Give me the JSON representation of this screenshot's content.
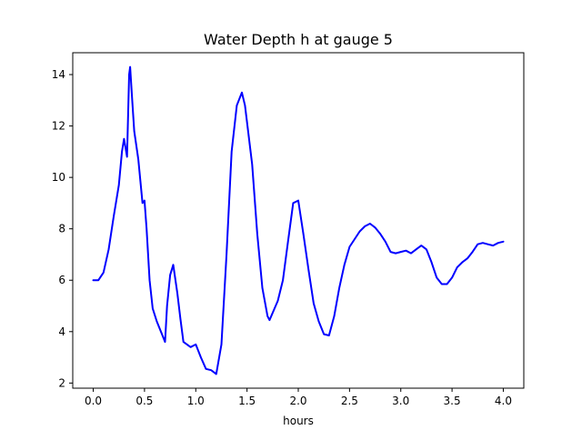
{
  "chart_data": {
    "type": "line",
    "title": "Water Depth h at gauge 5",
    "xlabel": "hours",
    "ylabel": "",
    "xlim": [
      -0.2,
      4.2
    ],
    "ylim": [
      1.8,
      14.85
    ],
    "xticks": [
      0.0,
      0.5,
      1.0,
      1.5,
      2.0,
      2.5,
      3.0,
      3.5,
      4.0
    ],
    "xtick_labels": [
      "0.0",
      "0.5",
      "1.0",
      "1.5",
      "2.0",
      "2.5",
      "3.0",
      "3.5",
      "4.0"
    ],
    "yticks": [
      2,
      4,
      6,
      8,
      10,
      12,
      14
    ],
    "ytick_labels": [
      "2",
      "4",
      "6",
      "8",
      "10",
      "12",
      "14"
    ],
    "grid": false,
    "legend": "none",
    "series": [
      {
        "color": "#0000ff",
        "points": [
          [
            0.0,
            6.0
          ],
          [
            0.05,
            6.0
          ],
          [
            0.1,
            6.3
          ],
          [
            0.15,
            7.2
          ],
          [
            0.2,
            8.5
          ],
          [
            0.25,
            9.7
          ],
          [
            0.28,
            11.0
          ],
          [
            0.3,
            11.5
          ],
          [
            0.33,
            10.8
          ],
          [
            0.35,
            14.0
          ],
          [
            0.36,
            14.3
          ],
          [
            0.38,
            13.0
          ],
          [
            0.4,
            11.8
          ],
          [
            0.44,
            10.7
          ],
          [
            0.48,
            9.0
          ],
          [
            0.5,
            9.1
          ],
          [
            0.52,
            8.0
          ],
          [
            0.55,
            6.0
          ],
          [
            0.58,
            4.9
          ],
          [
            0.62,
            4.4
          ],
          [
            0.67,
            3.9
          ],
          [
            0.7,
            3.6
          ],
          [
            0.72,
            5.0
          ],
          [
            0.75,
            6.2
          ],
          [
            0.78,
            6.6
          ],
          [
            0.82,
            5.5
          ],
          [
            0.85,
            4.5
          ],
          [
            0.88,
            3.6
          ],
          [
            0.95,
            3.4
          ],
          [
            1.0,
            3.5
          ],
          [
            1.05,
            3.0
          ],
          [
            1.1,
            2.55
          ],
          [
            1.15,
            2.5
          ],
          [
            1.2,
            2.35
          ],
          [
            1.25,
            3.5
          ],
          [
            1.3,
            7.0
          ],
          [
            1.35,
            11.0
          ],
          [
            1.4,
            12.8
          ],
          [
            1.45,
            13.3
          ],
          [
            1.48,
            12.8
          ],
          [
            1.55,
            10.5
          ],
          [
            1.6,
            7.8
          ],
          [
            1.65,
            5.7
          ],
          [
            1.7,
            4.6
          ],
          [
            1.72,
            4.45
          ],
          [
            1.8,
            5.2
          ],
          [
            1.85,
            6.0
          ],
          [
            1.9,
            7.5
          ],
          [
            1.95,
            9.0
          ],
          [
            2.0,
            9.1
          ],
          [
            2.05,
            7.8
          ],
          [
            2.1,
            6.4
          ],
          [
            2.15,
            5.1
          ],
          [
            2.2,
            4.4
          ],
          [
            2.25,
            3.9
          ],
          [
            2.3,
            3.85
          ],
          [
            2.35,
            4.6
          ],
          [
            2.4,
            5.7
          ],
          [
            2.45,
            6.6
          ],
          [
            2.5,
            7.3
          ],
          [
            2.55,
            7.6
          ],
          [
            2.6,
            7.9
          ],
          [
            2.65,
            8.1
          ],
          [
            2.7,
            8.2
          ],
          [
            2.75,
            8.05
          ],
          [
            2.8,
            7.8
          ],
          [
            2.85,
            7.5
          ],
          [
            2.9,
            7.1
          ],
          [
            2.95,
            7.05
          ],
          [
            3.0,
            7.1
          ],
          [
            3.05,
            7.15
          ],
          [
            3.1,
            7.05
          ],
          [
            3.15,
            7.2
          ],
          [
            3.2,
            7.35
          ],
          [
            3.25,
            7.2
          ],
          [
            3.3,
            6.7
          ],
          [
            3.35,
            6.1
          ],
          [
            3.4,
            5.85
          ],
          [
            3.45,
            5.85
          ],
          [
            3.5,
            6.1
          ],
          [
            3.55,
            6.5
          ],
          [
            3.6,
            6.7
          ],
          [
            3.65,
            6.85
          ],
          [
            3.7,
            7.1
          ],
          [
            3.75,
            7.4
          ],
          [
            3.8,
            7.45
          ],
          [
            3.85,
            7.4
          ],
          [
            3.9,
            7.35
          ],
          [
            3.95,
            7.45
          ],
          [
            4.0,
            7.5
          ]
        ]
      }
    ]
  }
}
